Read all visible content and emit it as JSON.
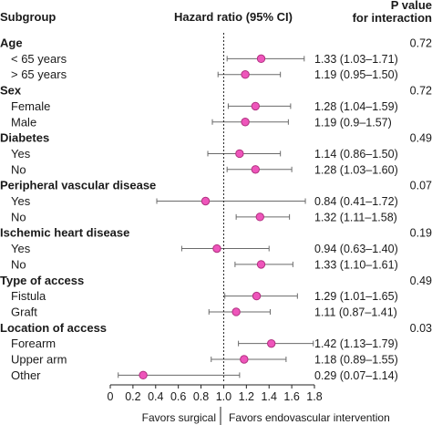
{
  "headers": {
    "subgroup": "Subgroup",
    "hazard_ratio": "Hazard ratio (95% CI)",
    "p_value_line1": "P value",
    "p_value_line2": "for interaction"
  },
  "favors": {
    "left": "Favors surgical",
    "right": "Favors endovascular intervention"
  },
  "colors": {
    "marker_fill": "#ee55bb",
    "marker_stroke": "#b0307f",
    "ci_line": "#6a6a6a",
    "reference_line": "#222222",
    "axis": "#222222"
  },
  "chart_data": {
    "type": "forest",
    "xaxis": {
      "lim": [
        0,
        1.8
      ],
      "ticks": [
        0,
        0.2,
        0.4,
        0.6,
        0.8,
        1.0,
        1.2,
        1.4,
        1.6,
        1.8
      ],
      "tick_labels": [
        "0",
        "0.2",
        "0.4",
        "0.6",
        "0.8",
        "1.0",
        "1.2",
        "1.4",
        "1.6",
        "1.8"
      ],
      "reference": 1.0,
      "reference_style": "dotted"
    },
    "groups": [
      {
        "name": "Age",
        "p_interaction": "0.72",
        "rows": [
          {
            "label": "< 65 years",
            "hr": 1.33,
            "lo": 1.03,
            "hi": 1.71,
            "text": "1.33 (1.03–1.71)"
          },
          {
            "label": "> 65 years",
            "hr": 1.19,
            "lo": 0.95,
            "hi": 1.5,
            "text": "1.19 (0.95–1.50)"
          }
        ]
      },
      {
        "name": "Sex",
        "p_interaction": "0.72",
        "rows": [
          {
            "label": "Female",
            "hr": 1.28,
            "lo": 1.04,
            "hi": 1.59,
            "text": "1.28 (1.04–1.59)"
          },
          {
            "label": "Male",
            "hr": 1.19,
            "lo": 0.9,
            "hi": 1.57,
            "text": "1.19 (0.9–1.57)"
          }
        ]
      },
      {
        "name": "Diabetes",
        "p_interaction": "0.49",
        "rows": [
          {
            "label": "Yes",
            "hr": 1.14,
            "lo": 0.86,
            "hi": 1.5,
            "text": "1.14 (0.86–1.50)"
          },
          {
            "label": "No",
            "hr": 1.28,
            "lo": 1.03,
            "hi": 1.6,
            "text": "1.28 (1.03–1.60)"
          }
        ]
      },
      {
        "name": "Peripheral vascular disease",
        "p_interaction": "0.07",
        "rows": [
          {
            "label": "Yes",
            "hr": 0.84,
            "lo": 0.41,
            "hi": 1.72,
            "text": "0.84 (0.41–1.72)"
          },
          {
            "label": "No",
            "hr": 1.32,
            "lo": 1.11,
            "hi": 1.58,
            "text": "1.32 (1.11–1.58)"
          }
        ]
      },
      {
        "name": "Ischemic heart disease",
        "p_interaction": "0.19",
        "rows": [
          {
            "label": "Yes",
            "hr": 0.94,
            "lo": 0.63,
            "hi": 1.4,
            "text": "0.94 (0.63–1.40)"
          },
          {
            "label": "No",
            "hr": 1.33,
            "lo": 1.1,
            "hi": 1.61,
            "text": "1.33 (1.10–1.61)"
          }
        ]
      },
      {
        "name": "Type of access",
        "p_interaction": "0.49",
        "rows": [
          {
            "label": "Fistula",
            "hr": 1.29,
            "lo": 1.01,
            "hi": 1.65,
            "text": "1.29 (1.01–1.65)"
          },
          {
            "label": "Graft",
            "hr": 1.11,
            "lo": 0.87,
            "hi": 1.41,
            "text": "1.11 (0.87–1.41)"
          }
        ]
      },
      {
        "name": "Location of access",
        "p_interaction": "0.03",
        "rows": [
          {
            "label": "Forearm",
            "hr": 1.42,
            "lo": 1.13,
            "hi": 1.79,
            "text": "1.42 (1.13–1.79)"
          },
          {
            "label": "Upper arm",
            "hr": 1.18,
            "lo": 0.89,
            "hi": 1.55,
            "text": "1.18 (0.89–1.55)"
          },
          {
            "label": "Other",
            "hr": 0.29,
            "lo": 0.07,
            "hi": 1.14,
            "text": "0.29 (0.07–1.14)"
          }
        ]
      }
    ]
  }
}
